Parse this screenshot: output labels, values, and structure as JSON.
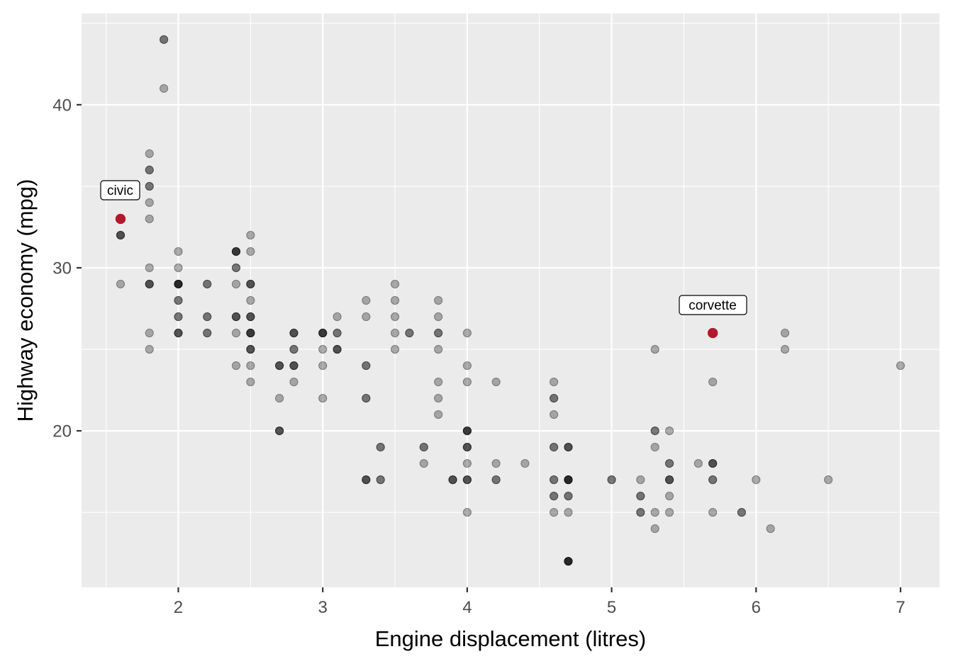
{
  "chart_data": {
    "type": "scatter",
    "title": "",
    "xlabel": "Engine displacement (litres)",
    "ylabel": "Highway economy (mpg)",
    "xlim": [
      1.33,
      7.27
    ],
    "ylim": [
      10.4,
      45.6
    ],
    "x_ticks": [
      2,
      3,
      4,
      5,
      6,
      7
    ],
    "y_ticks": [
      20,
      30,
      40
    ],
    "grid": true,
    "legend": "none",
    "point_color": "#000000",
    "point_alpha": 0.3,
    "highlight_color": "#b2182b",
    "background_color": "#ebebeb",
    "points": [
      {
        "x": 1.6,
        "y": 32,
        "n": 3
      },
      {
        "x": 1.6,
        "y": 29,
        "n": 1
      },
      {
        "x": 1.8,
        "y": 37,
        "n": 1
      },
      {
        "x": 1.8,
        "y": 36,
        "n": 2
      },
      {
        "x": 1.8,
        "y": 35,
        "n": 2
      },
      {
        "x": 1.8,
        "y": 34,
        "n": 1
      },
      {
        "x": 1.8,
        "y": 33,
        "n": 1
      },
      {
        "x": 1.8,
        "y": 30,
        "n": 1
      },
      {
        "x": 1.8,
        "y": 29,
        "n": 3
      },
      {
        "x": 1.8,
        "y": 26,
        "n": 1
      },
      {
        "x": 1.8,
        "y": 25,
        "n": 1
      },
      {
        "x": 1.9,
        "y": 44,
        "n": 2
      },
      {
        "x": 1.9,
        "y": 41,
        "n": 1
      },
      {
        "x": 2.0,
        "y": 31,
        "n": 1
      },
      {
        "x": 2.0,
        "y": 30,
        "n": 1
      },
      {
        "x": 2.0,
        "y": 29,
        "n": 5
      },
      {
        "x": 2.0,
        "y": 28,
        "n": 2
      },
      {
        "x": 2.0,
        "y": 27,
        "n": 2
      },
      {
        "x": 2.0,
        "y": 26,
        "n": 3
      },
      {
        "x": 2.2,
        "y": 29,
        "n": 2
      },
      {
        "x": 2.2,
        "y": 27,
        "n": 2
      },
      {
        "x": 2.2,
        "y": 26,
        "n": 2
      },
      {
        "x": 2.4,
        "y": 31,
        "n": 4
      },
      {
        "x": 2.4,
        "y": 30,
        "n": 2
      },
      {
        "x": 2.4,
        "y": 29,
        "n": 1
      },
      {
        "x": 2.4,
        "y": 27,
        "n": 3
      },
      {
        "x": 2.4,
        "y": 26,
        "n": 1
      },
      {
        "x": 2.4,
        "y": 24,
        "n": 1
      },
      {
        "x": 2.5,
        "y": 32,
        "n": 1
      },
      {
        "x": 2.5,
        "y": 31,
        "n": 1
      },
      {
        "x": 2.5,
        "y": 29,
        "n": 3
      },
      {
        "x": 2.5,
        "y": 28,
        "n": 1
      },
      {
        "x": 2.5,
        "y": 27,
        "n": 3
      },
      {
        "x": 2.5,
        "y": 26,
        "n": 4
      },
      {
        "x": 2.5,
        "y": 25,
        "n": 3
      },
      {
        "x": 2.5,
        "y": 24,
        "n": 1
      },
      {
        "x": 2.5,
        "y": 23,
        "n": 1
      },
      {
        "x": 2.7,
        "y": 24,
        "n": 3
      },
      {
        "x": 2.7,
        "y": 22,
        "n": 1
      },
      {
        "x": 2.7,
        "y": 20,
        "n": 3
      },
      {
        "x": 2.8,
        "y": 26,
        "n": 3
      },
      {
        "x": 2.8,
        "y": 25,
        "n": 2
      },
      {
        "x": 2.8,
        "y": 24,
        "n": 3
      },
      {
        "x": 2.8,
        "y": 23,
        "n": 1
      },
      {
        "x": 3.0,
        "y": 26,
        "n": 4
      },
      {
        "x": 3.0,
        "y": 25,
        "n": 1
      },
      {
        "x": 3.0,
        "y": 24,
        "n": 1
      },
      {
        "x": 3.0,
        "y": 22,
        "n": 1
      },
      {
        "x": 3.1,
        "y": 27,
        "n": 1
      },
      {
        "x": 3.1,
        "y": 26,
        "n": 2
      },
      {
        "x": 3.1,
        "y": 25,
        "n": 3
      },
      {
        "x": 3.3,
        "y": 28,
        "n": 1
      },
      {
        "x": 3.3,
        "y": 27,
        "n": 1
      },
      {
        "x": 3.3,
        "y": 24,
        "n": 2
      },
      {
        "x": 3.3,
        "y": 22,
        "n": 2
      },
      {
        "x": 3.3,
        "y": 17,
        "n": 3
      },
      {
        "x": 3.4,
        "y": 19,
        "n": 2
      },
      {
        "x": 3.4,
        "y": 17,
        "n": 2
      },
      {
        "x": 3.5,
        "y": 29,
        "n": 1
      },
      {
        "x": 3.5,
        "y": 28,
        "n": 1
      },
      {
        "x": 3.5,
        "y": 27,
        "n": 1
      },
      {
        "x": 3.5,
        "y": 26,
        "n": 1
      },
      {
        "x": 3.5,
        "y": 25,
        "n": 1
      },
      {
        "x": 3.6,
        "y": 26,
        "n": 2
      },
      {
        "x": 3.7,
        "y": 19,
        "n": 2
      },
      {
        "x": 3.7,
        "y": 18,
        "n": 1
      },
      {
        "x": 3.8,
        "y": 28,
        "n": 1
      },
      {
        "x": 3.8,
        "y": 27,
        "n": 1
      },
      {
        "x": 3.8,
        "y": 26,
        "n": 2
      },
      {
        "x": 3.8,
        "y": 25,
        "n": 1
      },
      {
        "x": 3.8,
        "y": 23,
        "n": 1
      },
      {
        "x": 3.8,
        "y": 22,
        "n": 1
      },
      {
        "x": 3.8,
        "y": 21,
        "n": 1
      },
      {
        "x": 3.9,
        "y": 17,
        "n": 3
      },
      {
        "x": 4.0,
        "y": 26,
        "n": 1
      },
      {
        "x": 4.0,
        "y": 24,
        "n": 1
      },
      {
        "x": 4.0,
        "y": 23,
        "n": 1
      },
      {
        "x": 4.0,
        "y": 20,
        "n": 4
      },
      {
        "x": 4.0,
        "y": 19,
        "n": 3
      },
      {
        "x": 4.0,
        "y": 18,
        "n": 1
      },
      {
        "x": 4.0,
        "y": 17,
        "n": 3
      },
      {
        "x": 4.0,
        "y": 15,
        "n": 1
      },
      {
        "x": 4.2,
        "y": 23,
        "n": 1
      },
      {
        "x": 4.2,
        "y": 18,
        "n": 1
      },
      {
        "x": 4.2,
        "y": 17,
        "n": 2
      },
      {
        "x": 4.4,
        "y": 18,
        "n": 1
      },
      {
        "x": 4.6,
        "y": 23,
        "n": 1
      },
      {
        "x": 4.6,
        "y": 22,
        "n": 2
      },
      {
        "x": 4.6,
        "y": 21,
        "n": 1
      },
      {
        "x": 4.6,
        "y": 19,
        "n": 2
      },
      {
        "x": 4.6,
        "y": 17,
        "n": 2
      },
      {
        "x": 4.6,
        "y": 16,
        "n": 2
      },
      {
        "x": 4.6,
        "y": 15,
        "n": 1
      },
      {
        "x": 4.7,
        "y": 19,
        "n": 3
      },
      {
        "x": 4.7,
        "y": 17,
        "n": 5
      },
      {
        "x": 4.7,
        "y": 16,
        "n": 2
      },
      {
        "x": 4.7,
        "y": 15,
        "n": 1
      },
      {
        "x": 4.7,
        "y": 12,
        "n": 5
      },
      {
        "x": 5.0,
        "y": 17,
        "n": 2
      },
      {
        "x": 5.2,
        "y": 17,
        "n": 1
      },
      {
        "x": 5.2,
        "y": 16,
        "n": 2
      },
      {
        "x": 5.2,
        "y": 15,
        "n": 2
      },
      {
        "x": 5.3,
        "y": 25,
        "n": 1
      },
      {
        "x": 5.3,
        "y": 20,
        "n": 2
      },
      {
        "x": 5.3,
        "y": 19,
        "n": 1
      },
      {
        "x": 5.3,
        "y": 15,
        "n": 1
      },
      {
        "x": 5.3,
        "y": 14,
        "n": 1
      },
      {
        "x": 5.4,
        "y": 20,
        "n": 1
      },
      {
        "x": 5.4,
        "y": 18,
        "n": 2
      },
      {
        "x": 5.4,
        "y": 17,
        "n": 3
      },
      {
        "x": 5.4,
        "y": 16,
        "n": 1
      },
      {
        "x": 5.4,
        "y": 15,
        "n": 1
      },
      {
        "x": 5.6,
        "y": 18,
        "n": 1
      },
      {
        "x": 5.7,
        "y": 23,
        "n": 1
      },
      {
        "x": 5.7,
        "y": 18,
        "n": 3
      },
      {
        "x": 5.7,
        "y": 17,
        "n": 2
      },
      {
        "x": 5.7,
        "y": 15,
        "n": 1
      },
      {
        "x": 5.9,
        "y": 15,
        "n": 2
      },
      {
        "x": 6.0,
        "y": 17,
        "n": 1
      },
      {
        "x": 6.1,
        "y": 14,
        "n": 1
      },
      {
        "x": 6.2,
        "y": 26,
        "n": 1
      },
      {
        "x": 6.2,
        "y": 25,
        "n": 1
      },
      {
        "x": 6.5,
        "y": 17,
        "n": 1
      },
      {
        "x": 7.0,
        "y": 24,
        "n": 1
      }
    ],
    "highlighted": [
      {
        "label": "civic",
        "x": 1.6,
        "y": 33
      },
      {
        "label": "corvette",
        "x": 5.7,
        "y": 26
      }
    ],
    "annotations": [
      "civic",
      "corvette"
    ]
  },
  "axes": {
    "x_title": "Engine displacement (litres)",
    "y_title": "Highway economy (mpg)",
    "x_tick_labels": [
      "2",
      "3",
      "4",
      "5",
      "6",
      "7"
    ],
    "y_tick_labels": [
      "20",
      "30",
      "40"
    ]
  },
  "labels": {
    "civic": "civic",
    "corvette": "corvette"
  }
}
